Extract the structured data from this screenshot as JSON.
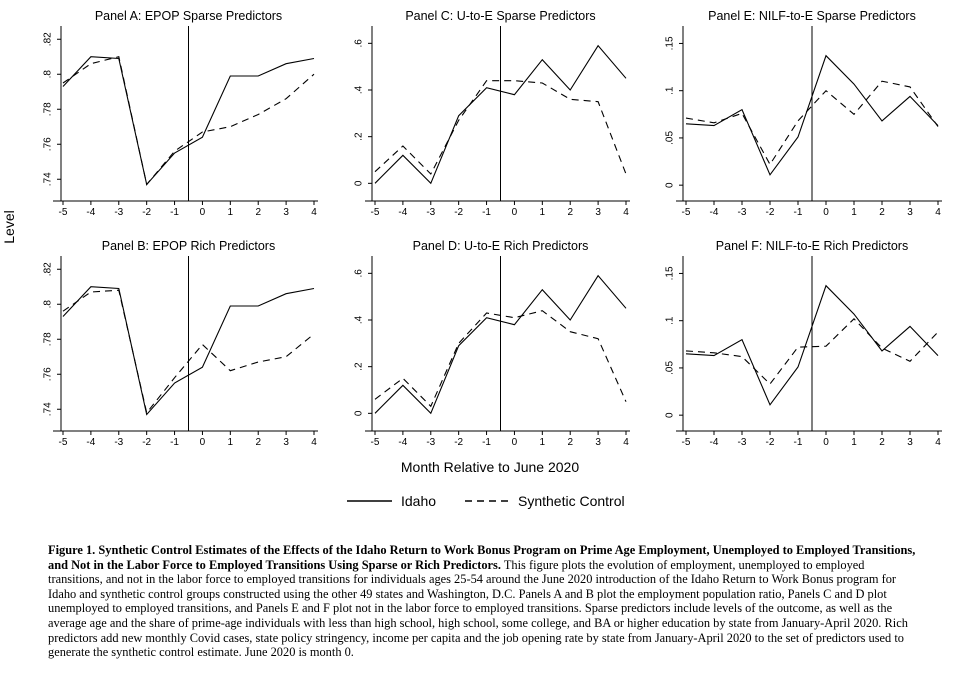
{
  "figure": {
    "ylabel": "Level",
    "xlabel": "Month Relative to June 2020",
    "legend": {
      "idaho": "Idaho",
      "synthetic": "Synthetic Control"
    },
    "caption_bold": "Figure 1. Synthetic Control Estimates of the Effects of the Idaho Return to Work Bonus Program on Prime Age Employment, Unemployed to Employed Transitions, and Not in the Labor Force to Employed Transitions Using Sparse or Rich Predictors.",
    "caption_text": " This figure plots the evolution of employment, unemployed to employed transitions, and not in the labor force to employed transitions for individuals ages 25-54 around the June 2020 introduction of the Idaho Return to Work Bonus program for Idaho and synthetic control groups constructed using the other 49 states and Washington, D.C. Panels A and B plot the employment population ratio, Panels C and D plot unemployed to employed transitions, and Panels E and F plot not in the labor force to employed transitions. Sparse predictors include levels of the outcome, as well as the average age and the share of prime-age individuals with less than high school, high school, some college, and BA or higher education by state from January-April 2020. Rich predictors add new monthly Covid cases, state policy stringency, income per capita and the job opening rate by state from January-April 2020 to the set of predictors used to generate the synthetic control estimate. June 2020 is month 0."
  },
  "chart_data": [
    {
      "type": "line",
      "title": "Panel A: EPOP Sparse Predictors",
      "x": [
        -5,
        -4,
        -3,
        -2,
        -1,
        0,
        1,
        2,
        3,
        4
      ],
      "xticks": [
        "-5",
        "-4",
        "-3",
        "-2",
        "-1",
        "0",
        "1",
        "2",
        "3",
        "4"
      ],
      "ylim": [
        0.735,
        0.823
      ],
      "yticks": [
        0.74,
        0.76,
        0.78,
        0.8,
        0.82
      ],
      "ytick_labels": [
        ".74",
        ".76",
        ".78",
        ".8",
        ".82"
      ],
      "vline": -0.5,
      "series": [
        {
          "name": "Idaho",
          "values": [
            0.793,
            0.81,
            0.809,
            0.737,
            0.755,
            0.764,
            0.799,
            0.799,
            0.806,
            0.809
          ]
        },
        {
          "name": "Synthetic Control",
          "values": [
            0.795,
            0.806,
            0.81,
            0.737,
            0.756,
            0.767,
            0.77,
            0.777,
            0.786,
            0.8
          ]
        }
      ]
    },
    {
      "type": "line",
      "title": "Panel C: U-to-E Sparse Predictors",
      "x": [
        -5,
        -4,
        -3,
        -2,
        -1,
        0,
        1,
        2,
        3,
        4
      ],
      "xticks": [
        "-5",
        "-4",
        "-3",
        "-2",
        "-1",
        "0",
        "1",
        "2",
        "3",
        "4"
      ],
      "ylim": [
        -0.02,
        0.64
      ],
      "yticks": [
        0,
        0.2,
        0.4,
        0.6
      ],
      "ytick_labels": [
        "0",
        ".2",
        ".4",
        ".6"
      ],
      "vline": -0.5,
      "series": [
        {
          "name": "Idaho",
          "values": [
            0.0,
            0.12,
            0.0,
            0.29,
            0.41,
            0.38,
            0.53,
            0.4,
            0.59,
            0.45
          ]
        },
        {
          "name": "Synthetic Control",
          "values": [
            0.05,
            0.16,
            0.04,
            0.27,
            0.44,
            0.44,
            0.43,
            0.36,
            0.35,
            0.04
          ]
        }
      ]
    },
    {
      "type": "line",
      "title": "Panel E: NILF-to-E Sparse Predictors",
      "x": [
        -5,
        -4,
        -3,
        -2,
        -1,
        0,
        1,
        2,
        3,
        4
      ],
      "xticks": [
        "-5",
        "-4",
        "-3",
        "-2",
        "-1",
        "0",
        "1",
        "2",
        "3",
        "4"
      ],
      "ylim": [
        -0.003,
        0.16
      ],
      "yticks": [
        0,
        0.05,
        0.1,
        0.15
      ],
      "ytick_labels": [
        "0",
        ".05",
        ".1",
        ".15"
      ],
      "vline": -0.5,
      "series": [
        {
          "name": "Idaho",
          "values": [
            0.065,
            0.063,
            0.08,
            0.011,
            0.051,
            0.137,
            0.107,
            0.068,
            0.094,
            0.063
          ]
        },
        {
          "name": "Synthetic Control",
          "values": [
            0.071,
            0.066,
            0.076,
            0.022,
            0.068,
            0.1,
            0.075,
            0.11,
            0.104,
            0.062
          ]
        }
      ]
    },
    {
      "type": "line",
      "title": "Panel B: EPOP Rich Predictors",
      "x": [
        -5,
        -4,
        -3,
        -2,
        -1,
        0,
        1,
        2,
        3,
        4
      ],
      "xticks": [
        "-5",
        "-4",
        "-3",
        "-2",
        "-1",
        "0",
        "1",
        "2",
        "3",
        "4"
      ],
      "ylim": [
        0.735,
        0.823
      ],
      "yticks": [
        0.74,
        0.76,
        0.78,
        0.8,
        0.82
      ],
      "ytick_labels": [
        ".74",
        ".76",
        ".78",
        ".8",
        ".82"
      ],
      "vline": -0.5,
      "series": [
        {
          "name": "Idaho",
          "values": [
            0.793,
            0.81,
            0.809,
            0.737,
            0.755,
            0.764,
            0.799,
            0.799,
            0.806,
            0.809
          ]
        },
        {
          "name": "Synthetic Control",
          "values": [
            0.796,
            0.807,
            0.808,
            0.738,
            0.758,
            0.777,
            0.762,
            0.767,
            0.77,
            0.783
          ]
        }
      ]
    },
    {
      "type": "line",
      "title": "Panel D: U-to-E Rich Predictors",
      "x": [
        -5,
        -4,
        -3,
        -2,
        -1,
        0,
        1,
        2,
        3,
        4
      ],
      "xticks": [
        "-5",
        "-4",
        "-3",
        "-2",
        "-1",
        "0",
        "1",
        "2",
        "3",
        "4"
      ],
      "ylim": [
        -0.02,
        0.64
      ],
      "yticks": [
        0,
        0.2,
        0.4,
        0.6
      ],
      "ytick_labels": [
        "0",
        ".2",
        ".4",
        ".6"
      ],
      "vline": -0.5,
      "series": [
        {
          "name": "Idaho",
          "values": [
            0.0,
            0.12,
            0.0,
            0.29,
            0.41,
            0.38,
            0.53,
            0.4,
            0.59,
            0.45
          ]
        },
        {
          "name": "Synthetic Control",
          "values": [
            0.06,
            0.15,
            0.03,
            0.3,
            0.43,
            0.41,
            0.44,
            0.35,
            0.32,
            0.05
          ]
        }
      ]
    },
    {
      "type": "line",
      "title": "Panel F: NILF-to-E Rich Predictors",
      "x": [
        -5,
        -4,
        -3,
        -2,
        -1,
        0,
        1,
        2,
        3,
        4
      ],
      "xticks": [
        "-5",
        "-4",
        "-3",
        "-2",
        "-1",
        "0",
        "1",
        "2",
        "3",
        "4"
      ],
      "ylim": [
        -0.003,
        0.16
      ],
      "yticks": [
        0,
        0.05,
        0.1,
        0.15
      ],
      "ytick_labels": [
        "0",
        ".05",
        ".1",
        ".15"
      ],
      "vline": -0.5,
      "series": [
        {
          "name": "Idaho",
          "values": [
            0.065,
            0.063,
            0.08,
            0.011,
            0.051,
            0.137,
            0.107,
            0.068,
            0.094,
            0.063
          ]
        },
        {
          "name": "Synthetic Control",
          "values": [
            0.068,
            0.066,
            0.062,
            0.033,
            0.072,
            0.073,
            0.102,
            0.071,
            0.057,
            0.088
          ]
        }
      ]
    }
  ]
}
